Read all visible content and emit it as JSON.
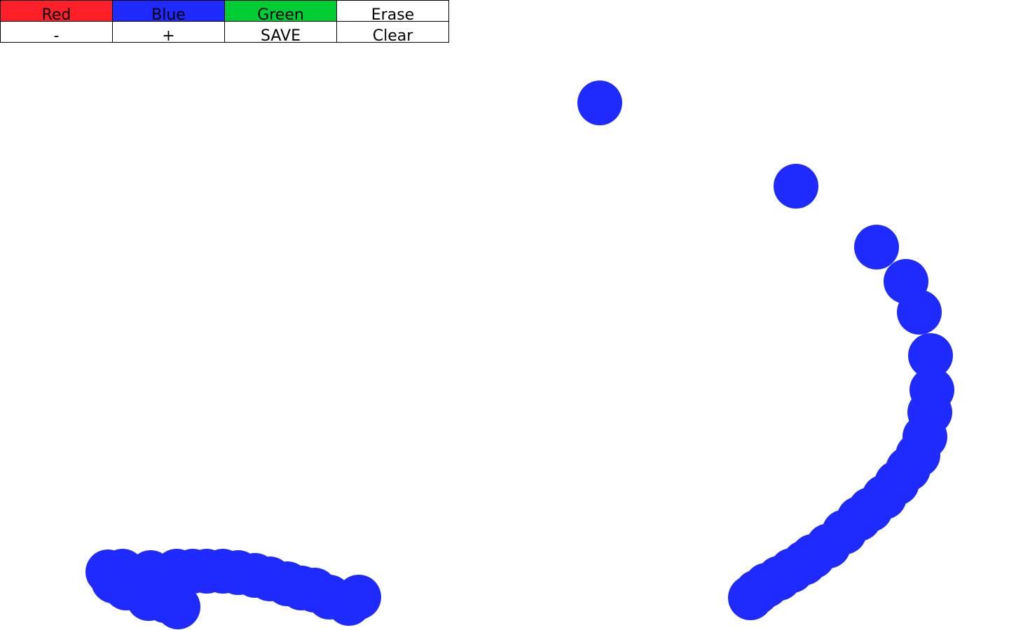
{
  "toolbar": {
    "colors": [
      {
        "label": "Red",
        "bg": "#fe2029"
      },
      {
        "label": "Blue",
        "bg": "#1f2aff"
      },
      {
        "label": "Green",
        "bg": "#00cc33"
      },
      {
        "label": "Erase",
        "bg": "#ffffff"
      }
    ],
    "actions": [
      {
        "label": "-"
      },
      {
        "label": "+"
      },
      {
        "label": "SAVE"
      },
      {
        "label": "Clear"
      }
    ]
  },
  "canvas": {
    "stroke_color": "#1f2aff",
    "background": "#ffffff"
  }
}
